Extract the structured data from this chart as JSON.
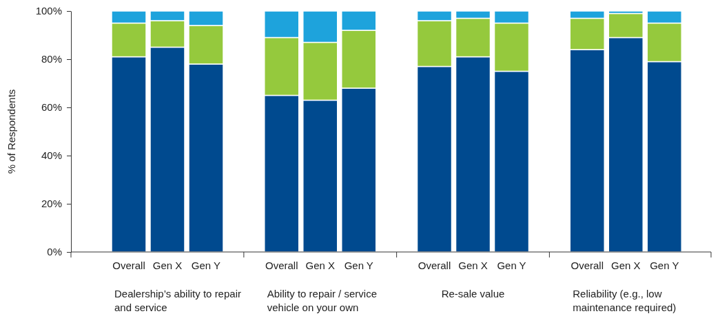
{
  "chart_data": {
    "type": "bar",
    "stacked": true,
    "ylabel": "% of Respondents",
    "categories": [
      "Overall",
      "Gen X",
      "Gen Y",
      "Overall",
      "Gen X",
      "Gen Y",
      "Overall",
      "Gen X",
      "Gen Y",
      "Overall",
      "Gen X",
      "Gen Y"
    ],
    "series": [
      {
        "color": "#004a8f",
        "values": [
          81,
          85,
          78,
          65,
          63,
          68,
          77,
          81,
          75,
          84,
          89,
          79
        ]
      },
      {
        "color": "#95c93d",
        "values": [
          14,
          11,
          16,
          24,
          24,
          24,
          19,
          16,
          20,
          13,
          10,
          16
        ]
      },
      {
        "color": "#1ea3dc",
        "values": [
          5,
          4,
          6,
          11,
          13,
          8,
          4,
          3,
          5,
          3,
          1,
          5
        ]
      }
    ],
    "ylim": [
      0,
      100
    ],
    "yticks": [
      {
        "value": 0,
        "label": "0%"
      },
      {
        "value": 20,
        "label": "20%"
      },
      {
        "value": 40,
        "label": "40%"
      },
      {
        "value": 60,
        "label": "60%"
      },
      {
        "value": 80,
        "label": "80%"
      },
      {
        "value": 100,
        "label": "100%"
      }
    ],
    "annotations": [
      "Dealership’s ability to repair and service",
      "Ability to repair / service vehicle on your own",
      "Re-sale value",
      "Reliability (e.g., low maintenance required)"
    ]
  }
}
